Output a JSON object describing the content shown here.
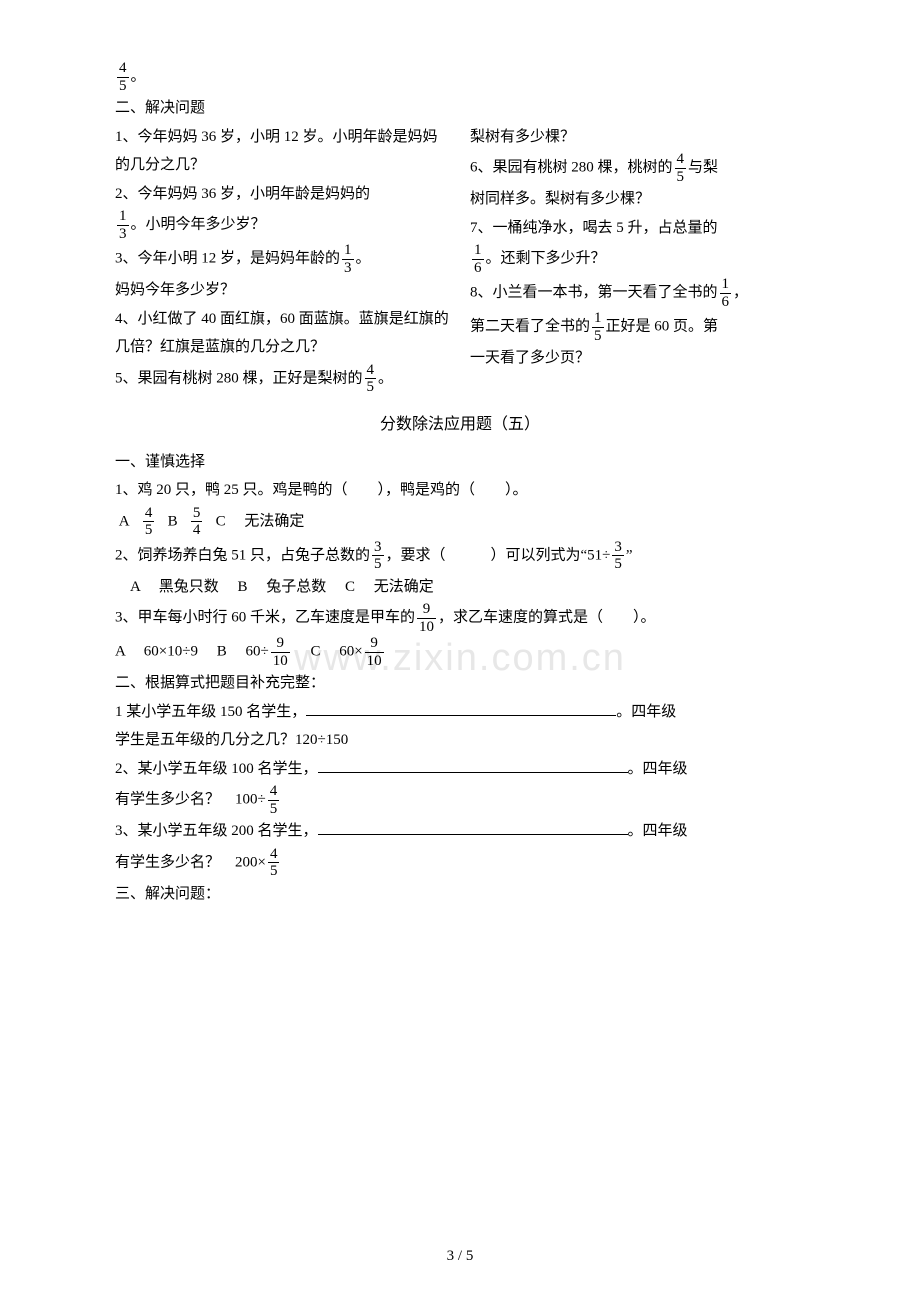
{
  "watermark": "www.zixin.com.cn",
  "top_frac": {
    "num": "4",
    "den": "5",
    "suffix": "。"
  },
  "sect2": {
    "heading": "二、解决问题",
    "left": {
      "q1": "1、今年妈妈 36 岁，小明 12 岁。小明年龄是妈妈的几分之几？",
      "q2a": "2、今年妈妈 36 岁，小明年龄是妈妈的",
      "q2_frac": {
        "num": "1",
        "den": "3"
      },
      "q2b": "。小明今年多少岁？",
      "q3a": "3、今年小明 12 岁，是妈妈年龄的",
      "q3_frac": {
        "num": "1",
        "den": "3"
      },
      "q3b": "。",
      "q3c": "妈妈今年多少岁？",
      "q4": "4、小红做了 40 面红旗，60 面蓝旗。蓝旗是红旗的几倍？红旗是蓝旗的几分之几？",
      "q5a": "5、果园有桃树 280 棵，正好是梨树的",
      "q5_frac": {
        "num": "4",
        "den": "5"
      },
      "q5b": "。"
    },
    "right": {
      "r1": "梨树有多少棵？",
      "q6a": "6、果园有桃树 280 棵，桃树的",
      "q6_frac": {
        "num": "4",
        "den": "5"
      },
      "q6b": "与梨",
      "q6c": "树同样多。梨树有多少棵？",
      "q7a": "7、一桶纯净水，喝去 5 升，占总量的",
      "q7_frac": {
        "num": "1",
        "den": "6"
      },
      "q7b": "。还剩下多少升？",
      "q8a": "8、小兰看一本书，第一天看了全书的",
      "q8_frac": {
        "num": "1",
        "den": "6"
      },
      "q8b": "，",
      "q8c": "第二天看了全书的",
      "q8_frac2": {
        "num": "1",
        "den": "5"
      },
      "q8d": "正好是 60 页。第",
      "q8e": "一天看了多少页？"
    }
  },
  "title": "分数除法应用题（五）",
  "sect1b": {
    "heading": "一、谨慎选择",
    "q1": "1、鸡 20 只，鸭 25 只。鸡是鸭的（　　），鸭是鸡的（　　）。",
    "q1_A": "A",
    "q1_A_frac": {
      "num": "4",
      "den": "5"
    },
    "q1_B": "B",
    "q1_B_frac": {
      "num": "5",
      "den": "4"
    },
    "q1_C": "C　 无法确定",
    "q2a": "2、饲养场养白兔 51 只，占兔子总数的",
    "q2_frac": {
      "num": "3",
      "den": "5"
    },
    "q2b": "，要求（　　　）可以列式为“51÷",
    "q2_frac2": {
      "num": "3",
      "den": "5"
    },
    "q2c": "”",
    "q2opts": "　A　 黑兔只数　 B　 兔子总数　 C　 无法确定",
    "q3a": "3、甲车每小时行 60 千米，乙车速度是甲车的",
    "q3_frac": {
      "num": "9",
      "den": "10"
    },
    "q3b": "，求乙车速度的算式是（　　）。",
    "q3_A": "A　 60×10÷9　 B　 60÷",
    "q3_B_frac": {
      "num": "9",
      "den": "10"
    },
    "q3_C": "　 C　 60×",
    "q3_C_frac": {
      "num": "9",
      "den": "10"
    }
  },
  "sect2b": {
    "heading": "二、根据算式把题目补充完整：",
    "f1a": "1 某小学五年级 150 名学生，",
    "f1b": "。四年级",
    "f1c": "学生是五年级的几分之几？120÷150",
    "f2a": "2、某小学五年级 100 名学生，",
    "f2b": "。四年级",
    "f2c": "有学生多少名？　100÷",
    "f2_frac": {
      "num": "4",
      "den": "5"
    },
    "f3a": "3、某小学五年级 200 名学生，",
    "f3b": "。四年级",
    "f3c": "有学生多少名？　200×",
    "f3_frac": {
      "num": "4",
      "den": "5"
    }
  },
  "sect3b": {
    "heading": "三、解决问题："
  },
  "pagenum": "3 / 5"
}
